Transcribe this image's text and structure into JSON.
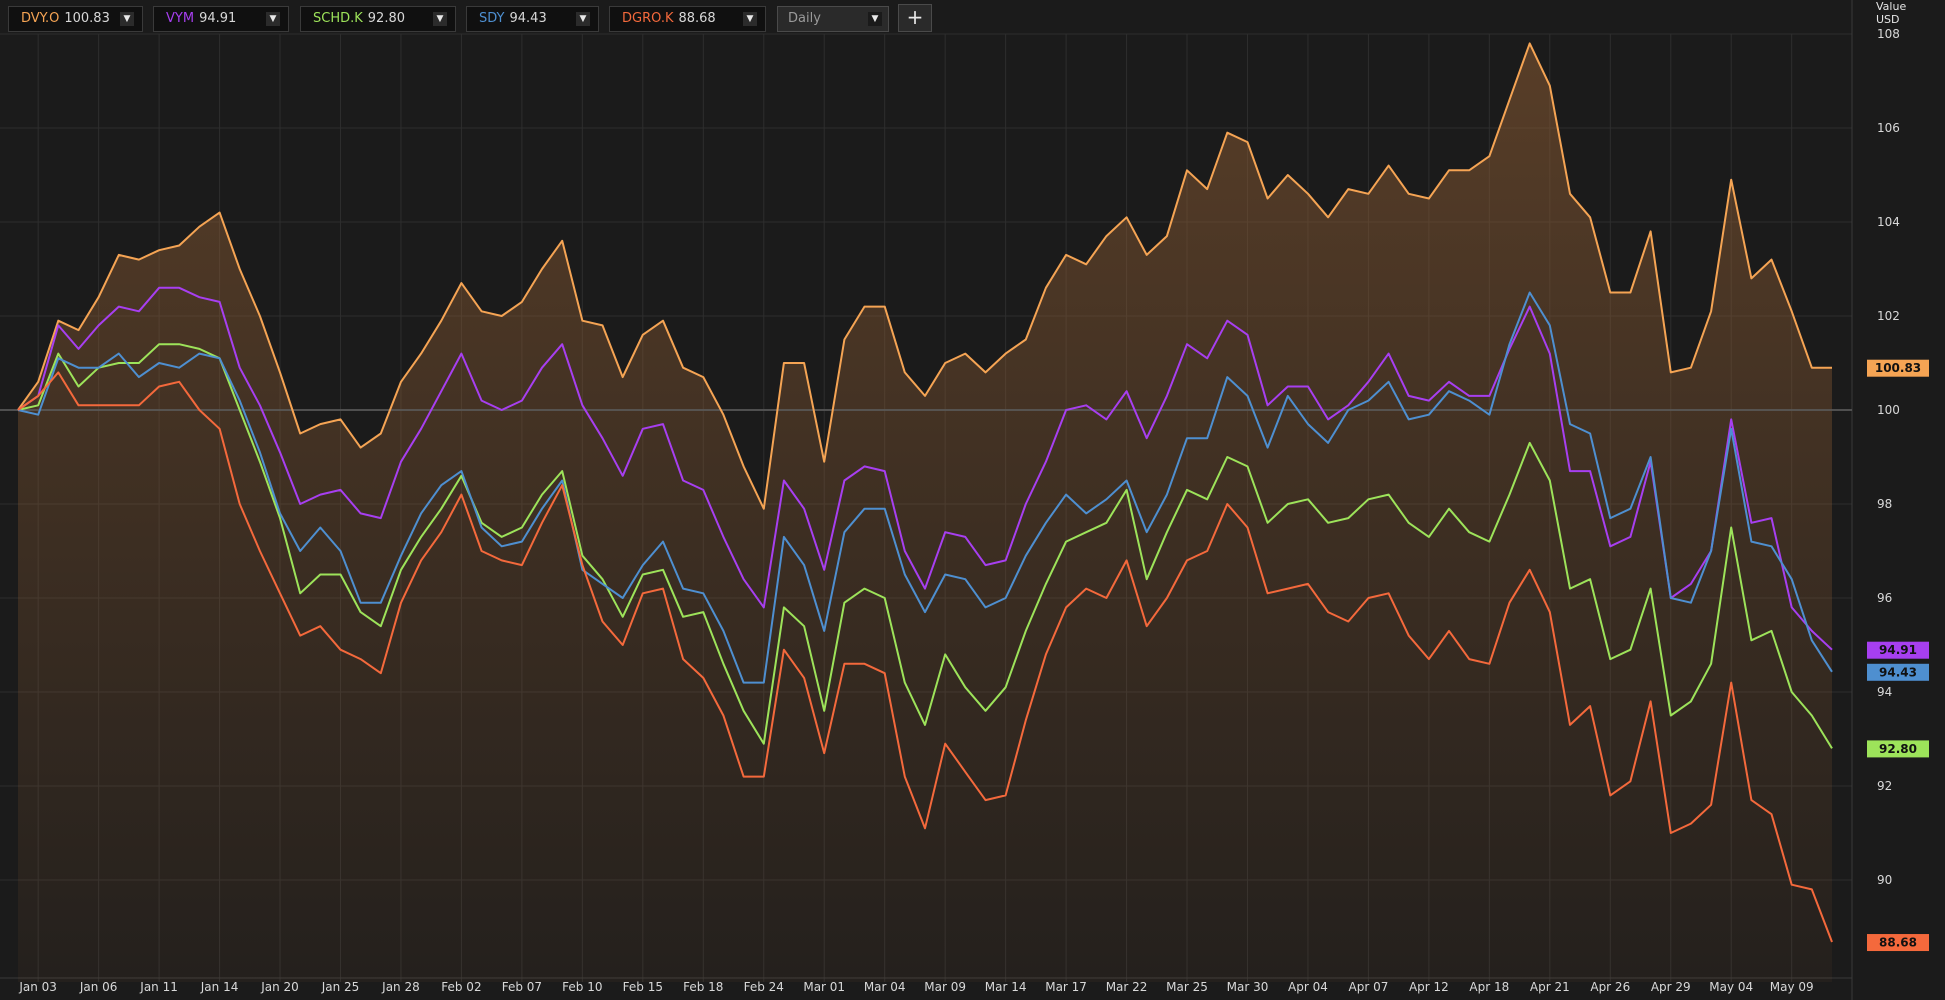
{
  "toolbar": {
    "symbols": [
      {
        "ticker": "DVY.O",
        "price": "100.83",
        "color": "#f5a454"
      },
      {
        "ticker": "VYM",
        "price": "94.91",
        "color": "#a73ff0"
      },
      {
        "ticker": "SCHD.K",
        "price": "92.80",
        "color": "#9de35a"
      },
      {
        "ticker": "SDY",
        "price": "94.43",
        "color": "#4e8fd0"
      },
      {
        "ticker": "DGRO.K",
        "price": "88.68",
        "color": "#f4693c"
      }
    ],
    "frequency": "Daily",
    "add_label": "+"
  },
  "axis_title": {
    "line1": "Value",
    "line2": "USD"
  },
  "chart_data": {
    "type": "line",
    "xlabel": "",
    "ylabel": "Value USD",
    "ylim": [
      88,
      108
    ],
    "yticks": [
      90,
      92,
      94,
      96,
      98,
      100,
      102,
      104,
      106,
      108
    ],
    "baseline": 100,
    "grid": true,
    "area_fill_series": "DVY.O",
    "x_ticks": [
      {
        "i": 1,
        "label": "Jan 03"
      },
      {
        "i": 4,
        "label": "Jan 06"
      },
      {
        "i": 7,
        "label": "Jan 11"
      },
      {
        "i": 10,
        "label": "Jan 14"
      },
      {
        "i": 13,
        "label": "Jan 20"
      },
      {
        "i": 16,
        "label": "Jan 25"
      },
      {
        "i": 19,
        "label": "Jan 28"
      },
      {
        "i": 22,
        "label": "Feb 02"
      },
      {
        "i": 25,
        "label": "Feb 07"
      },
      {
        "i": 28,
        "label": "Feb 10"
      },
      {
        "i": 31,
        "label": "Feb 15"
      },
      {
        "i": 34,
        "label": "Feb 18"
      },
      {
        "i": 37,
        "label": "Feb 24"
      },
      {
        "i": 40,
        "label": "Mar 01"
      },
      {
        "i": 43,
        "label": "Mar 04"
      },
      {
        "i": 46,
        "label": "Mar 09"
      },
      {
        "i": 49,
        "label": "Mar 14"
      },
      {
        "i": 52,
        "label": "Mar 17"
      },
      {
        "i": 55,
        "label": "Mar 22"
      },
      {
        "i": 58,
        "label": "Mar 25"
      },
      {
        "i": 61,
        "label": "Mar 30"
      },
      {
        "i": 64,
        "label": "Apr 04"
      },
      {
        "i": 67,
        "label": "Apr 07"
      },
      {
        "i": 70,
        "label": "Apr 12"
      },
      {
        "i": 73,
        "label": "Apr 18"
      },
      {
        "i": 76,
        "label": "Apr 21"
      },
      {
        "i": 79,
        "label": "Apr 26"
      },
      {
        "i": 82,
        "label": "Apr 29"
      },
      {
        "i": 85,
        "label": "May 04"
      },
      {
        "i": 88,
        "label": "May 09"
      }
    ],
    "series": [
      {
        "name": "DVY.O",
        "last_label": "100.83",
        "color": "#f5a454",
        "values": [
          100.0,
          100.6,
          101.9,
          101.7,
          102.4,
          103.3,
          103.2,
          103.4,
          103.5,
          103.9,
          104.2,
          103.0,
          102.0,
          100.8,
          99.5,
          99.7,
          99.8,
          99.2,
          99.5,
          100.6,
          101.2,
          101.9,
          102.7,
          102.1,
          102.0,
          102.3,
          103.0,
          103.6,
          101.9,
          101.8,
          100.7,
          101.6,
          101.9,
          100.9,
          100.7,
          99.9,
          98.8,
          97.9,
          101.0,
          101.0,
          98.9,
          101.5,
          102.2,
          102.2,
          100.8,
          100.3,
          101.0,
          101.2,
          100.8,
          101.2,
          101.5,
          102.6,
          103.3,
          103.1,
          103.7,
          104.1,
          103.3,
          103.7,
          105.1,
          104.7,
          105.9,
          105.7,
          104.5,
          105.0,
          104.6,
          104.1,
          104.7,
          104.6,
          105.2,
          104.6,
          104.5,
          105.1,
          105.1,
          105.4,
          106.6,
          107.8,
          106.9,
          104.6,
          104.1,
          102.5,
          102.5,
          103.8,
          100.8,
          100.9,
          102.1,
          104.9,
          102.8,
          103.2,
          102.1,
          100.9,
          100.9
        ]
      },
      {
        "name": "VYM",
        "last_label": "94.91",
        "color": "#a73ff0",
        "values": [
          100.0,
          100.3,
          101.8,
          101.3,
          101.8,
          102.2,
          102.1,
          102.6,
          102.6,
          102.4,
          102.3,
          100.9,
          100.1,
          99.1,
          98.0,
          98.2,
          98.3,
          97.8,
          97.7,
          98.9,
          99.6,
          100.4,
          101.2,
          100.2,
          100.0,
          100.2,
          100.9,
          101.4,
          100.1,
          99.4,
          98.6,
          99.6,
          99.7,
          98.5,
          98.3,
          97.3,
          96.4,
          95.8,
          98.5,
          97.9,
          96.6,
          98.5,
          98.8,
          98.7,
          97.0,
          96.2,
          97.4,
          97.3,
          96.7,
          96.8,
          98.0,
          98.9,
          100.0,
          100.1,
          99.8,
          100.4,
          99.4,
          100.3,
          101.4,
          101.1,
          101.9,
          101.6,
          100.1,
          100.5,
          100.5,
          99.8,
          100.1,
          100.6,
          101.2,
          100.3,
          100.2,
          100.6,
          100.3,
          100.3,
          101.3,
          102.2,
          101.2,
          98.7,
          98.7,
          97.1,
          97.3,
          98.9,
          96.0,
          96.3,
          97.0,
          99.8,
          97.6,
          97.7,
          95.8,
          95.3,
          94.9
        ]
      },
      {
        "name": "SCHD.K",
        "last_label": "92.80",
        "color": "#9de35a",
        "values": [
          100.0,
          100.1,
          101.2,
          100.5,
          100.9,
          101.0,
          101.0,
          101.4,
          101.4,
          101.3,
          101.1,
          100.0,
          98.9,
          97.7,
          96.1,
          96.5,
          96.5,
          95.7,
          95.4,
          96.6,
          97.3,
          97.9,
          98.6,
          97.6,
          97.3,
          97.5,
          98.2,
          98.7,
          96.9,
          96.4,
          95.6,
          96.5,
          96.6,
          95.6,
          95.7,
          94.6,
          93.6,
          92.9,
          95.8,
          95.4,
          93.6,
          95.9,
          96.2,
          96.0,
          94.2,
          93.3,
          94.8,
          94.1,
          93.6,
          94.1,
          95.3,
          96.3,
          97.2,
          97.4,
          97.6,
          98.3,
          96.4,
          97.4,
          98.3,
          98.1,
          99.0,
          98.8,
          97.6,
          98.0,
          98.1,
          97.6,
          97.7,
          98.1,
          98.2,
          97.6,
          97.3,
          97.9,
          97.4,
          97.2,
          98.2,
          99.3,
          98.5,
          96.2,
          96.4,
          94.7,
          94.9,
          96.2,
          93.5,
          93.8,
          94.6,
          97.5,
          95.1,
          95.3,
          94.0,
          93.5,
          92.8
        ]
      },
      {
        "name": "SDY",
        "last_label": "94.43",
        "color": "#4e8fd0",
        "values": [
          100.0,
          99.9,
          101.1,
          100.9,
          100.9,
          101.2,
          100.7,
          101.0,
          100.9,
          101.2,
          101.1,
          100.2,
          99.1,
          97.8,
          97.0,
          97.5,
          97.0,
          95.9,
          95.9,
          96.9,
          97.8,
          98.4,
          98.7,
          97.5,
          97.1,
          97.2,
          97.9,
          98.5,
          96.6,
          96.3,
          96.0,
          96.7,
          97.2,
          96.2,
          96.1,
          95.3,
          94.2,
          94.2,
          97.3,
          96.7,
          95.3,
          97.4,
          97.9,
          97.9,
          96.5,
          95.7,
          96.5,
          96.4,
          95.8,
          96.0,
          96.9,
          97.6,
          98.2,
          97.8,
          98.1,
          98.5,
          97.4,
          98.2,
          99.4,
          99.4,
          100.7,
          100.3,
          99.2,
          100.3,
          99.7,
          99.3,
          100.0,
          100.2,
          100.6,
          99.8,
          99.9,
          100.4,
          100.2,
          99.9,
          101.4,
          102.5,
          101.8,
          99.7,
          99.5,
          97.7,
          97.9,
          99.0,
          96.0,
          95.9,
          97.0,
          99.6,
          97.2,
          97.1,
          96.4,
          95.1,
          94.43
        ]
      },
      {
        "name": "DGRO.K",
        "last_label": "88.68",
        "color": "#f4693c",
        "values": [
          100.0,
          100.3,
          100.8,
          100.1,
          100.1,
          100.1,
          100.1,
          100.5,
          100.6,
          100.0,
          99.6,
          98.0,
          97.0,
          96.1,
          95.2,
          95.4,
          94.9,
          94.7,
          94.4,
          95.9,
          96.8,
          97.4,
          98.2,
          97.0,
          96.8,
          96.7,
          97.6,
          98.4,
          96.7,
          95.5,
          95.0,
          96.1,
          96.2,
          94.7,
          94.3,
          93.5,
          92.2,
          92.2,
          94.9,
          94.3,
          92.7,
          94.6,
          94.6,
          94.4,
          92.2,
          91.1,
          92.9,
          92.3,
          91.7,
          91.8,
          93.4,
          94.8,
          95.8,
          96.2,
          96.0,
          96.8,
          95.4,
          96.0,
          96.8,
          97.0,
          98.0,
          97.5,
          96.1,
          96.2,
          96.3,
          95.7,
          95.5,
          96.0,
          96.1,
          95.2,
          94.7,
          95.3,
          94.7,
          94.6,
          95.9,
          96.6,
          95.7,
          93.3,
          93.7,
          91.8,
          92.1,
          93.8,
          91.0,
          91.2,
          91.6,
          94.2,
          91.7,
          91.4,
          89.9,
          89.8,
          88.68
        ]
      }
    ]
  }
}
